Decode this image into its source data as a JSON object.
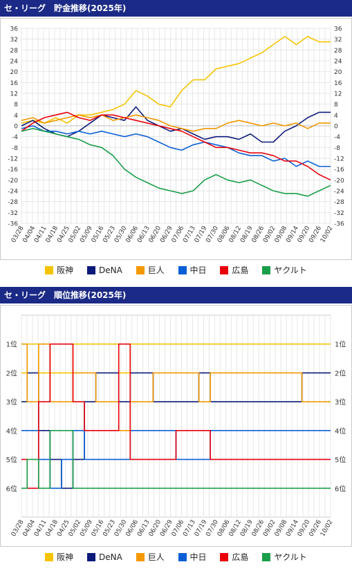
{
  "sections": {
    "balance_title": "セ・リーグ　貯金推移(2025年)",
    "rank_title": "セ・リーグ　順位推移(2025年)"
  },
  "legend": [
    {
      "label": "阪神",
      "color": "#f5c400"
    },
    {
      "label": "DeNA",
      "color": "#0b1a7a"
    },
    {
      "label": "巨人",
      "color": "#f39800"
    },
    {
      "label": "中日",
      "color": "#0a5fd6"
    },
    {
      "label": "広島",
      "color": "#e8000b"
    },
    {
      "label": "ヤクルト",
      "color": "#1a9e4a"
    }
  ],
  "chart_data": [
    {
      "type": "line",
      "title": "セ・リーグ　貯金推移(2025年)",
      "x": [
        "03/28",
        "04/04",
        "04/11",
        "04/18",
        "04/25",
        "05/02",
        "05/09",
        "05/16",
        "05/23",
        "05/30",
        "06/06",
        "06/13",
        "06/20",
        "06/29",
        "07/06",
        "07/13",
        "07/19",
        "07/30",
        "08/06",
        "08/12",
        "08/19",
        "08/26",
        "09/02",
        "09/08",
        "09/14",
        "09/20",
        "09/26",
        "10/02"
      ],
      "ylim": [
        -36,
        36
      ],
      "yticks": [
        36,
        32,
        28,
        24,
        20,
        16,
        12,
        8,
        4,
        0,
        -4,
        -8,
        -12,
        -16,
        -20,
        -24,
        -28,
        -32,
        -36
      ],
      "grid": true,
      "legend_position": "bottom",
      "series": [
        {
          "name": "阪神",
          "color": "#f5c400",
          "values": [
            1,
            2,
            1,
            3,
            1,
            4,
            4,
            5,
            6,
            8,
            13,
            11,
            8,
            7,
            13,
            17,
            17,
            21,
            22,
            23,
            25,
            27,
            30,
            33,
            30,
            33,
            31,
            31
          ]
        },
        {
          "name": "DeNA",
          "color": "#0b1a7a",
          "values": [
            0,
            2,
            -1,
            -3,
            -4,
            -2,
            1,
            4,
            3,
            2,
            7,
            2,
            0,
            -2,
            -1,
            -3,
            -5,
            -4,
            -4,
            -5,
            -3,
            -6,
            -6,
            -2,
            0,
            3,
            5,
            5
          ]
        },
        {
          "name": "巨人",
          "color": "#f39800",
          "values": [
            2,
            3,
            1,
            2,
            3,
            4,
            3,
            4,
            2,
            3,
            4,
            3,
            2,
            0,
            -1,
            -2,
            -1,
            -1,
            1,
            2,
            1,
            0,
            1,
            0,
            1,
            -1,
            1,
            1
          ]
        },
        {
          "name": "中日",
          "color": "#0a5fd6",
          "values": [
            -1,
            0,
            -2,
            -2,
            -3,
            -2,
            -3,
            -2,
            -3,
            -4,
            -3,
            -4,
            -6,
            -8,
            -9,
            -7,
            -6,
            -7,
            -8,
            -10,
            -11,
            -11,
            -13,
            -12,
            -15,
            -13,
            -15,
            -15
          ]
        },
        {
          "name": "広島",
          "color": "#e8000b",
          "values": [
            -2,
            1,
            3,
            4,
            5,
            3,
            2,
            4,
            4,
            3,
            2,
            1,
            0,
            -1,
            -2,
            -4,
            -6,
            -8,
            -8,
            -9,
            -10,
            -10,
            -11,
            -13,
            -13,
            -15,
            -18,
            -20
          ]
        },
        {
          "name": "ヤクルト",
          "color": "#1a9e4a",
          "values": [
            -2,
            -1,
            -2,
            -3,
            -4,
            -5,
            -7,
            -8,
            -11,
            -16,
            -19,
            -21,
            -23,
            -24,
            -25,
            -24,
            -20,
            -18,
            -20,
            -21,
            -20,
            -22,
            -24,
            -25,
            -25,
            -26,
            -24,
            -22
          ]
        }
      ]
    },
    {
      "type": "line",
      "title": "セ・リーグ　順位推移(2025年)",
      "x": [
        "03/28",
        "04/04",
        "04/11",
        "04/18",
        "04/25",
        "05/02",
        "05/09",
        "05/16",
        "05/23",
        "05/30",
        "06/06",
        "06/13",
        "06/20",
        "06/29",
        "07/06",
        "07/13",
        "07/19",
        "07/30",
        "08/06",
        "08/12",
        "08/19",
        "08/26",
        "09/02",
        "09/08",
        "09/14",
        "09/20",
        "09/26",
        "10/02"
      ],
      "yticks": [
        "1位",
        "2位",
        "3位",
        "4位",
        "5位",
        "6位"
      ],
      "ylim": [
        0,
        7
      ],
      "grid": true,
      "legend_position": "bottom",
      "series": [
        {
          "name": "阪神",
          "color": "#f5c400",
          "values": [
            2,
            1,
            2,
            2,
            2,
            1,
            1,
            1,
            1,
            2,
            1,
            1,
            1,
            1,
            1,
            1,
            1,
            1,
            1,
            1,
            1,
            1,
            1,
            1,
            1,
            1,
            1,
            1
          ]
        },
        {
          "name": "DeNA",
          "color": "#0b1a7a",
          "values": [
            3,
            2,
            4,
            5,
            6,
            5,
            3,
            2,
            2,
            3,
            2,
            2,
            3,
            3,
            3,
            3,
            2,
            3,
            3,
            3,
            3,
            3,
            3,
            3,
            3,
            2,
            2,
            2
          ]
        },
        {
          "name": "巨人",
          "color": "#f39800",
          "values": [
            1,
            3,
            1,
            3,
            3,
            2,
            2,
            3,
            3,
            4,
            3,
            3,
            2,
            2,
            2,
            2,
            3,
            2,
            2,
            2,
            2,
            2,
            2,
            2,
            2,
            3,
            3,
            3
          ]
        },
        {
          "name": "中日",
          "color": "#0a5fd6",
          "values": [
            4,
            4,
            5,
            6,
            5,
            4,
            5,
            5,
            5,
            5,
            4,
            4,
            4,
            4,
            5,
            5,
            5,
            4,
            4,
            4,
            4,
            4,
            4,
            4,
            4,
            4,
            4,
            4
          ]
        },
        {
          "name": "広島",
          "color": "#e8000b",
          "values": [
            5,
            6,
            3,
            1,
            1,
            3,
            4,
            4,
            4,
            1,
            5,
            5,
            5,
            5,
            4,
            4,
            4,
            5,
            5,
            5,
            5,
            5,
            5,
            5,
            5,
            5,
            5,
            5
          ]
        },
        {
          "name": "ヤクルト",
          "color": "#1a9e4a",
          "values": [
            6,
            5,
            6,
            4,
            4,
            6,
            6,
            6,
            6,
            6,
            6,
            6,
            6,
            6,
            6,
            6,
            6,
            6,
            6,
            6,
            6,
            6,
            6,
            6,
            6,
            6,
            6,
            6
          ]
        }
      ]
    }
  ]
}
